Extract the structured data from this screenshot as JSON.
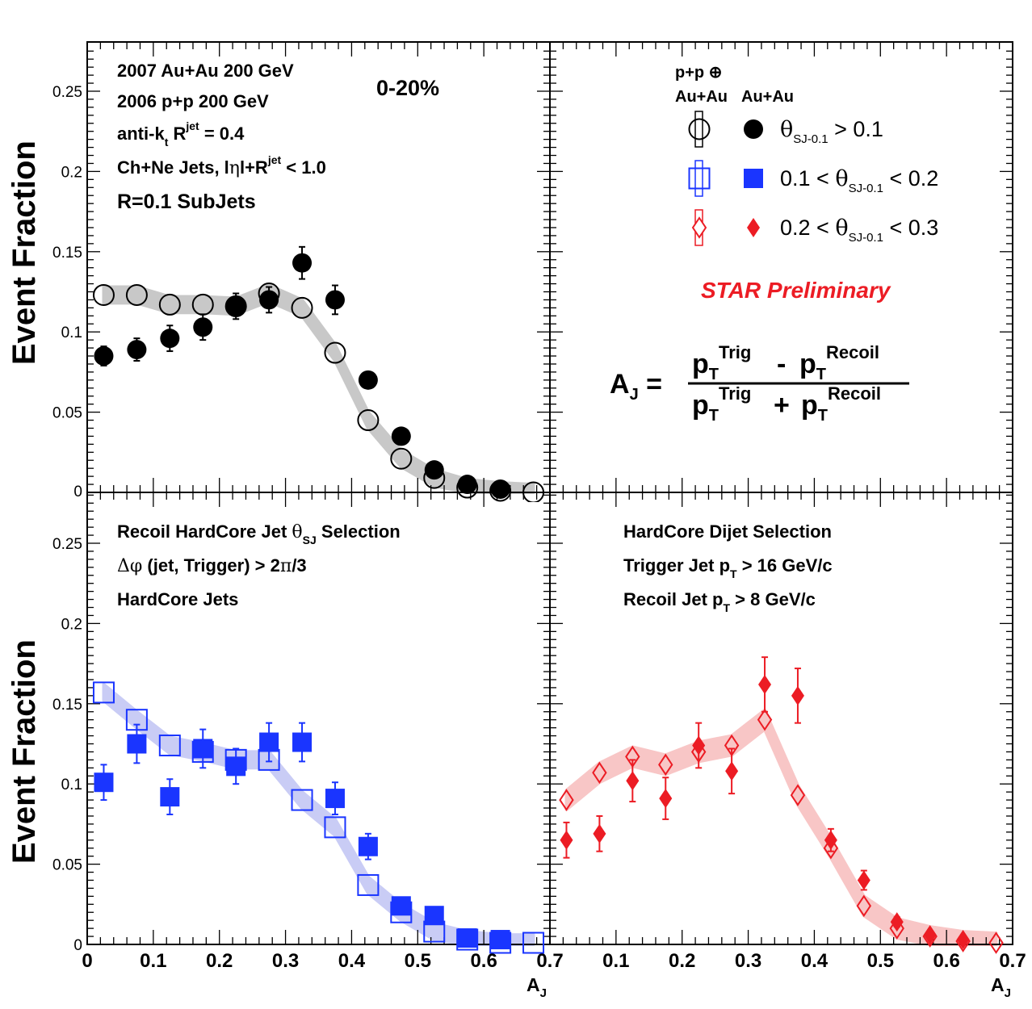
{
  "colors": {
    "black": "#000000",
    "blue": "#1a35ff",
    "red": "#ec1c24",
    "grey_band": "#c8c8c8",
    "blue_band": "#c9ccf5",
    "red_band": "#f8c6c6",
    "preliminary": "#ec1c24"
  },
  "y_axis_label": "Event Fraction",
  "x_axis_label": {
    "base": "A",
    "sub": "J"
  },
  "panels": {
    "top_left": {
      "lines": [
        {
          "text": "2007 Au+Au 200 GeV"
        },
        {
          "text": "2006 p+p 200 GeV"
        },
        {
          "a": "anti-k",
          "sub": "t",
          "b": " R",
          "sup": "jet",
          "c": " = 0.4"
        },
        {
          "a": "Ch+Ne Jets, l",
          "greek": "η",
          "b": "l+R",
          "sup": "jet",
          "c": " < 1.0"
        },
        {
          "text": "R=0.1 SubJets"
        }
      ],
      "centrality": "0-20%"
    },
    "top_right": {
      "legend_header_line1": "p+p ⊕",
      "legend_header_col1": "Au+Au",
      "legend_header_col2": "Au+Au",
      "legend_entries": [
        {
          "pre": "",
          "sym": "θ",
          "sub": "SJ-0.1",
          "post": " > 0.1",
          "color": "black"
        },
        {
          "pre": "0.1 < ",
          "sym": "θ",
          "sub": "SJ-0.1",
          "post": " < 0.2",
          "color": "blue"
        },
        {
          "pre": "0.2 < ",
          "sym": "θ",
          "sub": "SJ-0.1",
          "post": " < 0.3",
          "color": "red"
        }
      ],
      "preliminary": "STAR Preliminary",
      "formula": {
        "lhs": "A",
        "lhs_sub": "J",
        "eq": "=",
        "p": "p",
        "T": "T",
        "trig": "Trig",
        "recoil": "Recoil",
        "minus": "-",
        "plus": "+"
      }
    },
    "bottom_left": {
      "lines": [
        {
          "a": "Recoil HardCore Jet  ",
          "greek": "θ",
          "sub": "SJ",
          "b": " Selection"
        },
        {
          "a": "",
          "greek": "Δφ",
          "b": " (jet, Trigger) > 2",
          "greek2": "π",
          "c": "/3"
        },
        {
          "text": "HardCore Jets"
        }
      ]
    },
    "bottom_right": {
      "lines": [
        {
          "text": "HardCore Dijet Selection"
        },
        {
          "a": "Trigger Jet p",
          "sub": "T",
          "b": " > 16  GeV/c"
        },
        {
          "a": "Recoil Jet p",
          "sub": "T",
          "b": " >  8  GeV/c"
        }
      ]
    }
  },
  "chart_data": [
    {
      "type": "scatter",
      "panel": "top_left",
      "xlim": [
        0,
        0.7
      ],
      "ylim": [
        0,
        0.28
      ],
      "yticks": [
        "0.05",
        "0.1",
        "0.15",
        "0.2",
        "0.25"
      ],
      "series": [
        {
          "marker": "open-circle",
          "color": "black",
          "x": [
            0.025,
            0.075,
            0.125,
            0.175,
            0.225,
            0.275,
            0.325,
            0.375,
            0.425,
            0.475,
            0.525,
            0.575,
            0.625,
            0.675
          ],
          "y": [
            0.123,
            0.123,
            0.117,
            0.117,
            0.116,
            0.124,
            0.115,
            0.087,
            0.045,
            0.021,
            0.009,
            0.003,
            0.001,
            0.0
          ],
          "band": 0.005
        },
        {
          "marker": "filled-circle",
          "color": "black",
          "x": [
            0.025,
            0.075,
            0.125,
            0.175,
            0.225,
            0.275,
            0.325,
            0.375,
            0.425,
            0.475,
            0.525,
            0.575,
            0.625
          ],
          "y": [
            0.085,
            0.089,
            0.096,
            0.103,
            0.116,
            0.12,
            0.143,
            0.12,
            0.07,
            0.035,
            0.014,
            0.005,
            0.002
          ],
          "err": [
            0.006,
            0.007,
            0.008,
            0.008,
            0.008,
            0.008,
            0.01,
            0.009,
            0.004,
            0.003,
            0.002,
            0.001,
            0.001
          ]
        }
      ]
    },
    {
      "type": "scatter",
      "panel": "bottom_left",
      "xlim": [
        0,
        0.7
      ],
      "ylim": [
        0,
        0.28
      ],
      "yticks": [
        "0",
        "0.05",
        "0.1",
        "0.15",
        "0.2",
        "0.25"
      ],
      "xticks": [
        "0",
        "0.1",
        "0.2",
        "0.3",
        "0.4",
        "0.5",
        "0.6",
        "0.7"
      ],
      "series": [
        {
          "marker": "open-square",
          "color": "blue",
          "x": [
            0.025,
            0.075,
            0.125,
            0.175,
            0.225,
            0.275,
            0.325,
            0.375,
            0.425,
            0.475,
            0.525,
            0.575,
            0.625,
            0.675
          ],
          "y": [
            0.157,
            0.14,
            0.124,
            0.12,
            0.115,
            0.115,
            0.09,
            0.073,
            0.037,
            0.02,
            0.008,
            0.003,
            0.001,
            0.001
          ],
          "band": 0.005
        },
        {
          "marker": "filled-square",
          "color": "blue",
          "x": [
            0.025,
            0.075,
            0.125,
            0.175,
            0.225,
            0.275,
            0.325,
            0.375,
            0.425,
            0.475,
            0.525,
            0.575,
            0.625
          ],
          "y": [
            0.101,
            0.125,
            0.092,
            0.122,
            0.111,
            0.126,
            0.126,
            0.091,
            0.061,
            0.024,
            0.018,
            0.004,
            0.003
          ],
          "err": [
            0.011,
            0.012,
            0.011,
            0.012,
            0.011,
            0.012,
            0.012,
            0.01,
            0.008,
            0.004,
            0.003,
            0.001,
            0.001
          ]
        }
      ]
    },
    {
      "type": "scatter",
      "panel": "bottom_right",
      "xlim": [
        0,
        0.7
      ],
      "ylim": [
        0,
        0.28
      ],
      "xticks": [
        "0.1",
        "0.2",
        "0.3",
        "0.4",
        "0.5",
        "0.6",
        "0.7"
      ],
      "series": [
        {
          "marker": "open-diamond",
          "color": "red",
          "x": [
            0.025,
            0.075,
            0.125,
            0.175,
            0.225,
            0.275,
            0.325,
            0.375,
            0.425,
            0.475,
            0.525,
            0.575,
            0.625,
            0.675
          ],
          "y": [
            0.09,
            0.107,
            0.117,
            0.112,
            0.12,
            0.124,
            0.14,
            0.093,
            0.06,
            0.024,
            0.01,
            0.005,
            0.002,
            0.001
          ],
          "band": 0.006
        },
        {
          "marker": "filled-diamond",
          "color": "red",
          "x": [
            0.025,
            0.075,
            0.125,
            0.175,
            0.225,
            0.275,
            0.325,
            0.375,
            0.425,
            0.475,
            0.525,
            0.575,
            0.625
          ],
          "y": [
            0.065,
            0.069,
            0.102,
            0.091,
            0.124,
            0.108,
            0.162,
            0.155,
            0.065,
            0.04,
            0.014,
            0.006,
            0.003
          ],
          "err": [
            0.011,
            0.011,
            0.013,
            0.013,
            0.014,
            0.014,
            0.017,
            0.017,
            0.007,
            0.006,
            0.003,
            0.002,
            0.001
          ]
        }
      ]
    }
  ]
}
